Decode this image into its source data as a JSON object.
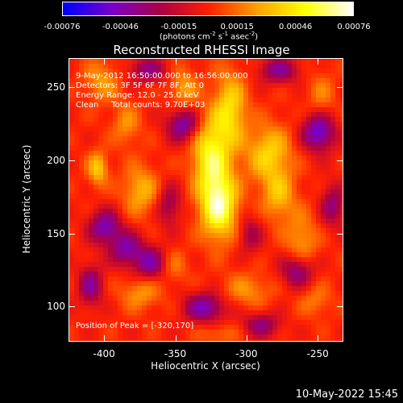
{
  "colorbar": {
    "ticks": [
      "-0.00076",
      "-0.00046",
      "-0.00015",
      "0.00015",
      "0.00046",
      "0.00076"
    ],
    "unit_prefix": "(photons cm",
    "unit_exp1": "-2",
    "unit_mid": " s",
    "unit_exp2": "-1",
    "unit_mid2": " asec",
    "unit_exp3": "-2",
    "unit_suffix": ")"
  },
  "annotations": {
    "line1": "9-May-2012 16:50:00.000 to 16:56:00.000",
    "line2": "Detectors: 3F 5F 6F 7F 8F, Att 0",
    "line3": "Energy Range: 12.0 - 25.0 keV",
    "line4": "Clean     Total counts: 9.70E+03",
    "peak": "Position of Peak = [-320,170]"
  },
  "footer": {
    "date": "10-May-2022 15:45"
  },
  "chart_data": {
    "type": "heatmap",
    "title": "Reconstructed RHESSI Image",
    "xlabel": "Heliocentric X (arcsec)",
    "ylabel": "Heliocentric Y (arcsec)",
    "xlim": [
      -425,
      -232
    ],
    "ylim": [
      76,
      270
    ],
    "xticks": [
      -400,
      -350,
      -300,
      -250
    ],
    "yticks": [
      100,
      150,
      200,
      250
    ],
    "xtick_labels": [
      "-400",
      "-350",
      "-300",
      "-250"
    ],
    "ytick_labels": [
      "100",
      "150",
      "200",
      "250"
    ],
    "colorbar_range": [
      -0.00076,
      0.00076
    ],
    "colormap": [
      "#0000ff",
      "#7a00c8",
      "#aa0044",
      "#ff2000",
      "#ffa000",
      "#ffff00",
      "#ffffff"
    ],
    "peak": [
      -320,
      170
    ],
    "peak_value": 0.00076,
    "sources": [
      {
        "x": -320,
        "y": 170,
        "sx": 9,
        "sy": 16,
        "amp": 0.00076
      },
      {
        "x": -326,
        "y": 205,
        "sx": 9,
        "sy": 18,
        "amp": 0.00058
      },
      {
        "x": -312,
        "y": 235,
        "sx": 8,
        "sy": 18,
        "amp": 0.00048
      },
      {
        "x": -285,
        "y": 205,
        "sx": 11,
        "sy": 14,
        "amp": 0.00045
      },
      {
        "x": -278,
        "y": 176,
        "sx": 8,
        "sy": 12,
        "amp": 0.00035
      },
      {
        "x": -262,
        "y": 145,
        "sx": 8,
        "sy": 14,
        "amp": 0.0003
      },
      {
        "x": -375,
        "y": 180,
        "sx": 9,
        "sy": 12,
        "amp": 0.00035
      },
      {
        "x": -405,
        "y": 195,
        "sx": 5,
        "sy": 8,
        "amp": 0.00042
      },
      {
        "x": -385,
        "y": 225,
        "sx": 7,
        "sy": 10,
        "amp": 0.00025
      },
      {
        "x": -402,
        "y": 255,
        "sx": 9,
        "sy": 10,
        "amp": 0.00028
      },
      {
        "x": -345,
        "y": 250,
        "sx": 7,
        "sy": 10,
        "amp": 0.0003
      },
      {
        "x": -375,
        "y": 110,
        "sx": 10,
        "sy": 8,
        "amp": 0.00028
      },
      {
        "x": -300,
        "y": 112,
        "sx": 12,
        "sy": 8,
        "amp": 0.00025
      },
      {
        "x": -252,
        "y": 105,
        "sx": 8,
        "sy": 8,
        "amp": 0.0002
      },
      {
        "x": -320,
        "y": 82,
        "sx": 10,
        "sy": 5,
        "amp": 0.00018
      },
      {
        "x": -248,
        "y": 245,
        "sx": 7,
        "sy": 12,
        "amp": 0.0002
      },
      {
        "x": -352,
        "y": 128,
        "sx": 7,
        "sy": 8,
        "amp": 0.0002
      },
      {
        "x": -385,
        "y": 140,
        "sx": 8,
        "sy": 8,
        "amp": -0.0005
      },
      {
        "x": -400,
        "y": 155,
        "sx": 8,
        "sy": 8,
        "amp": -0.00055
      },
      {
        "x": -368,
        "y": 130,
        "sx": 8,
        "sy": 8,
        "amp": -0.0005
      },
      {
        "x": -250,
        "y": 220,
        "sx": 8,
        "sy": 9,
        "amp": -0.00065
      },
      {
        "x": -345,
        "y": 225,
        "sx": 8,
        "sy": 8,
        "amp": -0.00055
      },
      {
        "x": -330,
        "y": 100,
        "sx": 10,
        "sy": 7,
        "amp": -0.00055
      },
      {
        "x": -265,
        "y": 125,
        "sx": 8,
        "sy": 8,
        "amp": -0.0005
      },
      {
        "x": -410,
        "y": 115,
        "sx": 6,
        "sy": 10,
        "amp": -0.00045
      },
      {
        "x": -278,
        "y": 262,
        "sx": 10,
        "sy": 6,
        "amp": -0.00045
      },
      {
        "x": -355,
        "y": 170,
        "sx": 6,
        "sy": 10,
        "amp": -0.00035
      },
      {
        "x": -298,
        "y": 150,
        "sx": 6,
        "sy": 9,
        "amp": -0.0003
      },
      {
        "x": -240,
        "y": 170,
        "sx": 6,
        "sy": 10,
        "amp": -0.0004
      },
      {
        "x": -290,
        "y": 88,
        "sx": 9,
        "sy": 6,
        "amp": -0.0004
      },
      {
        "x": -370,
        "y": 262,
        "sx": 10,
        "sy": 6,
        "amp": -0.0004
      }
    ]
  }
}
